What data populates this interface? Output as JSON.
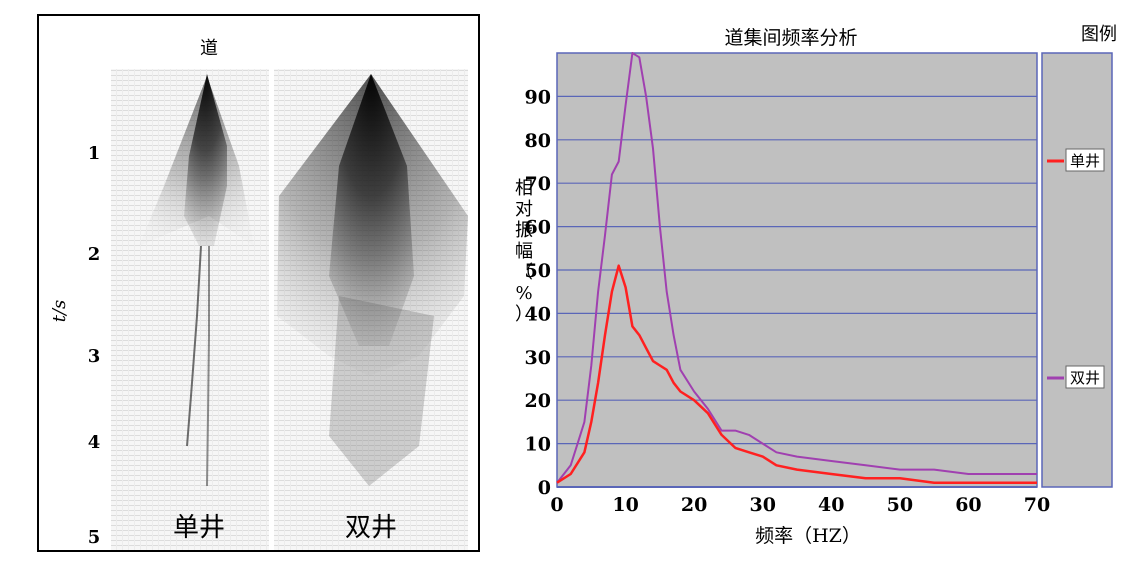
{
  "left_panel": {
    "trace_label": "道",
    "time_axis_label": "t/s",
    "time_ticks": [
      "1",
      "2",
      "3",
      "4",
      "5"
    ],
    "section_labels": [
      "单井",
      "双井"
    ]
  },
  "chart_data": {
    "type": "line",
    "title": "道集间频率分析",
    "xlabel": "频率（HZ）",
    "ylabel": "相对振幅（%）",
    "xlim": [
      0,
      70
    ],
    "ylim": [
      0,
      100
    ],
    "xticks": [
      0,
      10,
      20,
      30,
      40,
      50,
      60,
      70
    ],
    "yticks": [
      0,
      10,
      20,
      30,
      40,
      50,
      60,
      70,
      80,
      90
    ],
    "grid": "horizontal",
    "legend": {
      "title": "图例",
      "placement": "right"
    },
    "series": [
      {
        "name": "单井",
        "color": "#ff2020",
        "x": [
          0,
          2,
          4,
          5,
          6,
          7,
          8,
          9,
          10,
          11,
          12,
          13,
          14,
          15,
          16,
          17,
          18,
          20,
          22,
          24,
          26,
          28,
          30,
          32,
          35,
          40,
          45,
          50,
          55,
          60,
          65,
          70
        ],
        "y": [
          1,
          3,
          8,
          15,
          24,
          35,
          45,
          51,
          46,
          37,
          35,
          32,
          29,
          28,
          27,
          24,
          22,
          20,
          17,
          12,
          9,
          8,
          7,
          5,
          4,
          3,
          2,
          2,
          1,
          1,
          1,
          1
        ]
      },
      {
        "name": "双井",
        "color": "#a040b0",
        "x": [
          0,
          1,
          2,
          3,
          4,
          5,
          6,
          7,
          8,
          9,
          10,
          11,
          12,
          13,
          14,
          15,
          16,
          17,
          18,
          20,
          22,
          24,
          26,
          28,
          30,
          32,
          35,
          40,
          45,
          50,
          55,
          60,
          65,
          70
        ],
        "y": [
          1,
          3,
          5,
          10,
          15,
          28,
          45,
          58,
          72,
          75,
          88,
          100,
          99,
          90,
          78,
          60,
          45,
          35,
          27,
          22,
          18,
          13,
          13,
          12,
          10,
          8,
          7,
          6,
          5,
          4,
          4,
          3,
          3,
          3
        ]
      }
    ]
  }
}
